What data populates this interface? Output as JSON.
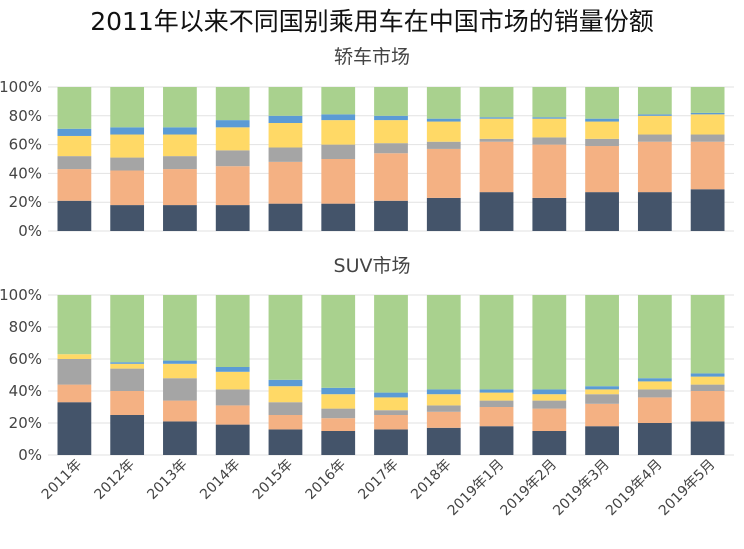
{
  "title": "2011年以来不同国别乘用车在中国市场的销量份额",
  "colors": [
    "#44546A",
    "#F4B183",
    "#A5A5A5",
    "#FFD966",
    "#5B9BD5",
    "#A9D18E"
  ],
  "chart_data": [
    {
      "type": "bar",
      "stacked": true,
      "title": "轿车市场",
      "ylim": [
        0,
        100
      ],
      "yticks": [
        "0%",
        "20%",
        "40%",
        "60%",
        "80%",
        "100%"
      ],
      "grid": true,
      "categories": [
        "2011年",
        "2012年",
        "2013年",
        "2014年",
        "2015年",
        "2016年",
        "2017年",
        "2018年",
        "2019年1月",
        "2019年2月",
        "2019年3月",
        "2019年4月",
        "2019年5月"
      ],
      "series": [
        {
          "values": [
            21,
            18,
            18,
            18,
            19,
            19,
            21,
            23,
            27,
            23,
            27,
            27,
            29
          ]
        },
        {
          "values": [
            22,
            24,
            25,
            27,
            29,
            31,
            33,
            34,
            35,
            37,
            32,
            35,
            33
          ]
        },
        {
          "values": [
            9,
            9,
            9,
            11,
            10,
            10,
            7,
            5,
            2,
            5,
            5,
            5,
            5
          ]
        },
        {
          "values": [
            14,
            16,
            15,
            16,
            17,
            17,
            16,
            14,
            14,
            13,
            12,
            13,
            14
          ]
        },
        {
          "values": [
            5,
            5,
            5,
            5,
            5,
            4,
            3,
            2,
            1,
            1,
            2,
            1,
            1
          ]
        },
        {
          "values": [
            29,
            28,
            28,
            23,
            20,
            19,
            20,
            22,
            21,
            21,
            22,
            19,
            18
          ]
        }
      ]
    },
    {
      "type": "bar",
      "stacked": true,
      "title": "SUV市场",
      "ylim": [
        0,
        100
      ],
      "yticks": [
        "0%",
        "20%",
        "40%",
        "60%",
        "80%",
        "100%"
      ],
      "grid": true,
      "categories": [
        "2011年",
        "2012年",
        "2013年",
        "2014年",
        "2015年",
        "2016年",
        "2017年",
        "2018年",
        "2019年1月",
        "2019年2月",
        "2019年3月",
        "2019年4月",
        "2019年5月"
      ],
      "series": [
        {
          "values": [
            33,
            25,
            21,
            19,
            16,
            15,
            16,
            17,
            18,
            15,
            18,
            20,
            21
          ]
        },
        {
          "values": [
            11,
            15,
            13,
            12,
            9,
            8,
            9,
            10,
            12,
            14,
            14,
            16,
            19
          ]
        },
        {
          "values": [
            16,
            14,
            14,
            10,
            8,
            6,
            3,
            4,
            4,
            5,
            6,
            5,
            4
          ]
        },
        {
          "values": [
            3,
            3,
            9,
            11,
            10,
            9,
            8,
            7,
            5,
            4,
            3,
            5,
            5
          ]
        },
        {
          "values": [
            0,
            1,
            2,
            3,
            4,
            4,
            3,
            3,
            2,
            3,
            2,
            2,
            2
          ]
        },
        {
          "values": [
            37,
            42,
            41,
            45,
            53,
            58,
            61,
            59,
            59,
            59,
            57,
            52,
            49
          ]
        }
      ]
    }
  ]
}
